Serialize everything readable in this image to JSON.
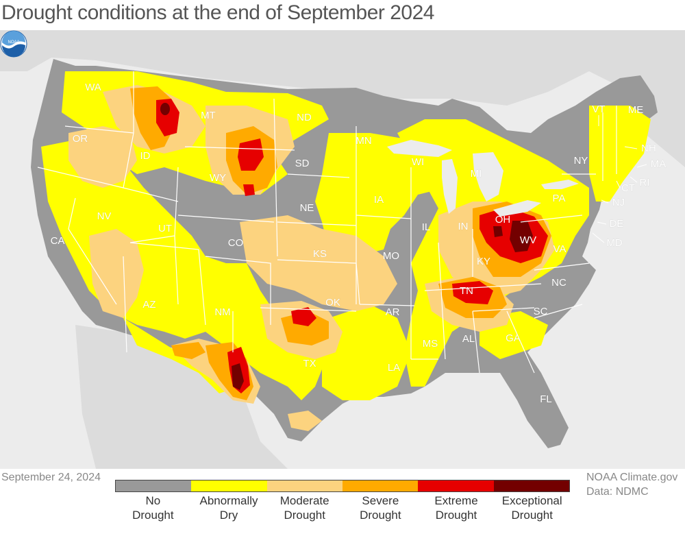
{
  "title": "Drought conditions at the end of September 2024",
  "date": "September 24, 2024",
  "credits": {
    "source": "NOAA Climate.gov",
    "data": "Data: NDMC"
  },
  "logo": {
    "name": "noaa-logo",
    "text": "NOAA"
  },
  "legend": {
    "categories": [
      {
        "line1": "No",
        "line2": "Drought",
        "color": "#999999"
      },
      {
        "line1": "Abnormally",
        "line2": "Dry",
        "color": "#ffff00"
      },
      {
        "line1": "Moderate",
        "line2": "Drought",
        "color": "#fcd37f"
      },
      {
        "line1": "Severe",
        "line2": "Drought",
        "color": "#ffaa00"
      },
      {
        "line1": "Extreme",
        "line2": "Drought",
        "color": "#e60000"
      },
      {
        "line1": "Exceptional",
        "line2": "Drought",
        "color": "#730000"
      }
    ]
  },
  "colors": {
    "background": "#ececec",
    "neighbor_land": "#dcdcdc",
    "no_drought": "#999999",
    "abnormally_dry": "#ffff00",
    "moderate": "#fcd37f",
    "severe": "#ffaa00",
    "extreme": "#e60000",
    "exceptional": "#730000"
  },
  "states": {
    "WA": "WA",
    "OR": "OR",
    "CA": "CA",
    "ID": "ID",
    "NV": "NV",
    "MT": "MT",
    "WY": "WY",
    "UT": "UT",
    "AZ": "AZ",
    "CO": "CO",
    "NM": "NM",
    "ND": "ND",
    "SD": "SD",
    "NE": "NE",
    "KS": "KS",
    "OK": "OK",
    "TX": "TX",
    "MN": "MN",
    "IA": "IA",
    "MO": "MO",
    "AR": "AR",
    "LA": "LA",
    "WI": "WI",
    "IL": "IL",
    "MI": "MI",
    "IN": "IN",
    "OH": "OH",
    "KY": "KY",
    "TN": "TN",
    "MS": "MS",
    "AL": "AL",
    "GA": "GA",
    "FL": "FL",
    "SC": "SC",
    "NC": "NC",
    "VA": "VA",
    "WV": "WV",
    "PA": "PA",
    "NY": "NY",
    "VT": "VT",
    "NH": "NH",
    "ME": "ME",
    "MA": "MA",
    "RI": "RI",
    "CT": "CT",
    "NJ": "NJ",
    "DE": "DE",
    "MD": "MD"
  }
}
